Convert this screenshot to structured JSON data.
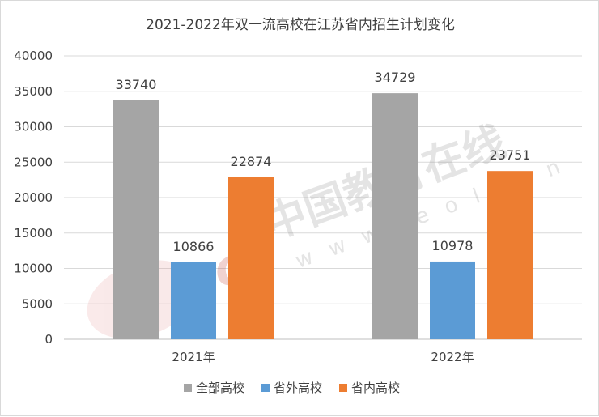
{
  "chart_data": {
    "type": "bar",
    "title": "2021-2022年双一流高校在江苏省内招生计划变化",
    "categories": [
      "2021年",
      "2022年"
    ],
    "series": [
      {
        "name": "全部高校",
        "values": [
          33740,
          34729
        ],
        "color": "#a5a5a5"
      },
      {
        "name": "省外高校",
        "values": [
          10866,
          10978
        ],
        "color": "#5b9bd5"
      },
      {
        "name": "省内高校",
        "values": [
          22874,
          23751
        ],
        "color": "#ed7d31"
      }
    ],
    "ylim": [
      0,
      40000
    ],
    "yticks": [
      0,
      5000,
      10000,
      15000,
      20000,
      25000,
      30000,
      35000,
      40000
    ],
    "grid": true,
    "legend_position": "bottom",
    "data_labels": true
  },
  "watermark": {
    "logo_text": "eol",
    "brand_text": "中国教育在线",
    "url_text": "www.eol.cn"
  }
}
